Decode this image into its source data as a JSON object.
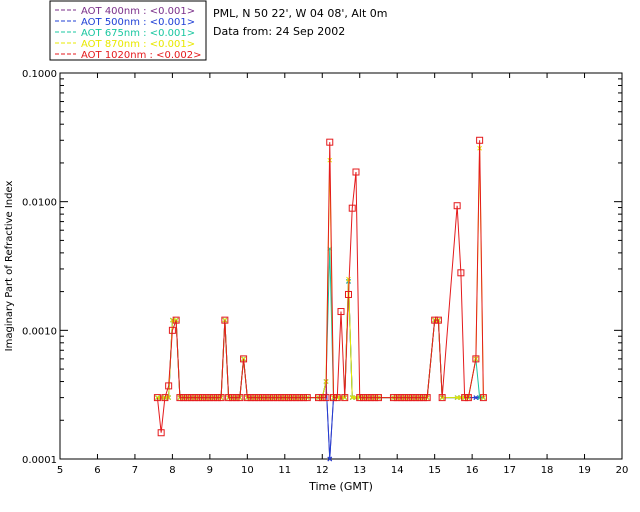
{
  "header": {
    "site": "PML, N 50 22', W 04 08', Alt 0m",
    "data_from": "Data from: 24 Sep 2002"
  },
  "chart_data": {
    "type": "line",
    "xlabel": "Time (GMT)",
    "ylabel": "Imaginary Part of Refractive Index",
    "xlim": [
      5,
      20
    ],
    "ylim": [
      0.0001,
      0.1
    ],
    "yscale": "log",
    "xticks": [
      "5",
      "6",
      "7",
      "8",
      "9",
      "10",
      "11",
      "12",
      "13",
      "14",
      "15",
      "16",
      "17",
      "18",
      "19",
      "20"
    ],
    "yticks": [
      "0.0001",
      "0.0010",
      "0.0100",
      "0.1000"
    ],
    "legend_position": "top-left",
    "series": [
      {
        "name": "AOT 400nm : <0.001>",
        "color": "#7a2f8a",
        "x": [
          7.6,
          7.7,
          7.8,
          7.9,
          8.0,
          8.1,
          8.2,
          8.3,
          8.4,
          8.5,
          8.6,
          8.7,
          8.8,
          8.9,
          9.0,
          9.1,
          9.2,
          9.3,
          9.4,
          9.5,
          9.6,
          9.7,
          9.8,
          9.9,
          10.0,
          10.1,
          10.2,
          10.3,
          10.4,
          10.5,
          10.6,
          10.7,
          10.8,
          10.9,
          11.0,
          11.1,
          11.2,
          11.3,
          11.4,
          11.5,
          11.6,
          11.9,
          12.0,
          12.1,
          12.2,
          12.3,
          12.4,
          12.5,
          12.6,
          12.7,
          12.8,
          12.9,
          13.0,
          13.1,
          13.2,
          13.3,
          13.4,
          13.5,
          13.9,
          14.0,
          14.1,
          14.2,
          14.3,
          14.4,
          14.5,
          14.6,
          14.7,
          14.8,
          15.0,
          15.1,
          15.2,
          15.6,
          15.7,
          15.8,
          15.9,
          16.1,
          16.2,
          16.3
        ],
        "y": [
          0.0003,
          0.0003,
          0.0003,
          0.0003,
          0.0012,
          0.0012,
          0.0003,
          0.0003,
          0.0003,
          0.0003,
          0.0003,
          0.0003,
          0.0003,
          0.0003,
          0.0003,
          0.0003,
          0.0003,
          0.0003,
          0.0012,
          0.0003,
          0.0003,
          0.0003,
          0.0003,
          0.0006,
          0.0003,
          0.0003,
          0.0003,
          0.0003,
          0.0003,
          0.0003,
          0.0003,
          0.0003,
          0.0003,
          0.0003,
          0.0003,
          0.0003,
          0.0003,
          0.0003,
          0.0003,
          0.0003,
          0.0003,
          0.0003,
          0.0003,
          0.0004,
          0.0001,
          0.0003,
          0.0003,
          0.0003,
          0.0003,
          0.0024,
          0.0003,
          0.0003,
          0.0003,
          0.0003,
          0.0003,
          0.0003,
          0.0003,
          0.0003,
          0.0003,
          0.0003,
          0.0003,
          0.0003,
          0.0003,
          0.0003,
          0.0003,
          0.0003,
          0.0003,
          0.0003,
          0.0012,
          0.0012,
          0.0003,
          0.0003,
          0.0003,
          0.0003,
          0.0003,
          0.0003,
          0.0003,
          0.0003
        ]
      },
      {
        "name": "AOT 500nm : <0.001>",
        "color": "#1f3fd6",
        "x": [
          7.6,
          7.7,
          7.8,
          7.9,
          8.0,
          8.1,
          8.2,
          8.3,
          8.4,
          8.5,
          8.6,
          8.7,
          8.8,
          8.9,
          9.0,
          9.1,
          9.2,
          9.3,
          9.4,
          9.5,
          9.6,
          9.7,
          9.8,
          9.9,
          10.0,
          10.1,
          10.2,
          10.3,
          10.4,
          10.5,
          10.6,
          10.7,
          10.8,
          10.9,
          11.0,
          11.1,
          11.2,
          11.3,
          11.4,
          11.5,
          11.6,
          11.9,
          12.0,
          12.1,
          12.2,
          12.3,
          12.4,
          12.5,
          12.6,
          12.7,
          12.8,
          12.9,
          13.0,
          13.1,
          13.2,
          13.3,
          13.4,
          13.5,
          13.9,
          14.0,
          14.1,
          14.2,
          14.3,
          14.4,
          14.5,
          14.6,
          14.7,
          14.8,
          15.0,
          15.1,
          15.2,
          15.6,
          15.7,
          15.8,
          15.9,
          16.1,
          16.2,
          16.3
        ],
        "y": [
          0.0003,
          0.0003,
          0.0003,
          0.0003,
          0.0012,
          0.0012,
          0.0003,
          0.0003,
          0.0003,
          0.0003,
          0.0003,
          0.0003,
          0.0003,
          0.0003,
          0.0003,
          0.0003,
          0.0003,
          0.0003,
          0.0012,
          0.0003,
          0.0003,
          0.0003,
          0.0003,
          0.0006,
          0.0003,
          0.0003,
          0.0003,
          0.0003,
          0.0003,
          0.0003,
          0.0003,
          0.0003,
          0.0003,
          0.0003,
          0.0003,
          0.0003,
          0.0003,
          0.0003,
          0.0003,
          0.0003,
          0.0003,
          0.0003,
          0.0003,
          0.0004,
          0.0001,
          0.0003,
          0.0003,
          0.0003,
          0.0003,
          0.0024,
          0.0003,
          0.0003,
          0.0003,
          0.0003,
          0.0003,
          0.0003,
          0.0003,
          0.0003,
          0.0003,
          0.0003,
          0.0003,
          0.0003,
          0.0003,
          0.0003,
          0.0003,
          0.0003,
          0.0003,
          0.0003,
          0.0012,
          0.0012,
          0.0003,
          0.0003,
          0.0003,
          0.0003,
          0.0003,
          0.0003,
          0.0003,
          0.0003
        ]
      },
      {
        "name": "AOT 675nm : <0.001>",
        "color": "#19c7a0",
        "x": [
          7.6,
          7.7,
          7.8,
          7.9,
          8.0,
          8.1,
          8.2,
          8.3,
          8.4,
          8.5,
          8.6,
          8.7,
          8.8,
          8.9,
          9.0,
          9.1,
          9.2,
          9.3,
          9.4,
          9.5,
          9.6,
          9.7,
          9.8,
          9.9,
          10.0,
          10.1,
          10.2,
          10.3,
          10.4,
          10.5,
          10.6,
          10.7,
          10.8,
          10.9,
          11.0,
          11.1,
          11.2,
          11.3,
          11.4,
          11.5,
          11.6,
          11.9,
          12.0,
          12.1,
          12.2,
          12.3,
          12.4,
          12.5,
          12.6,
          12.7,
          12.8,
          12.9,
          13.0,
          13.1,
          13.2,
          13.3,
          13.4,
          13.5,
          13.9,
          14.0,
          14.1,
          14.2,
          14.3,
          14.4,
          14.5,
          14.6,
          14.7,
          14.8,
          15.0,
          15.1,
          15.2,
          15.6,
          15.7,
          15.8,
          15.9,
          16.1,
          16.2,
          16.3
        ],
        "y": [
          0.0003,
          0.0003,
          0.0003,
          0.0003,
          0.0012,
          0.0012,
          0.0003,
          0.0003,
          0.0003,
          0.0003,
          0.0003,
          0.0003,
          0.0003,
          0.0003,
          0.0003,
          0.0003,
          0.0003,
          0.0003,
          0.0012,
          0.0003,
          0.0003,
          0.0003,
          0.0003,
          0.0006,
          0.0003,
          0.0003,
          0.0003,
          0.0003,
          0.0003,
          0.0003,
          0.0003,
          0.0003,
          0.0003,
          0.0003,
          0.0003,
          0.0003,
          0.0003,
          0.0003,
          0.0003,
          0.0003,
          0.0003,
          0.0003,
          0.0003,
          0.0004,
          0.0043,
          0.0003,
          0.0003,
          0.0003,
          0.0003,
          0.0024,
          0.0003,
          0.0003,
          0.0003,
          0.0003,
          0.0003,
          0.0003,
          0.0003,
          0.0003,
          0.0003,
          0.0003,
          0.0003,
          0.0003,
          0.0003,
          0.0003,
          0.0003,
          0.0003,
          0.0003,
          0.0003,
          0.0012,
          0.0012,
          0.0003,
          0.0003,
          0.0003,
          0.0003,
          0.0003,
          0.0006,
          0.0003,
          0.0003
        ]
      },
      {
        "name": "AOT 870nm : <0.001>",
        "color": "#e8e800",
        "x": [
          7.6,
          7.7,
          7.8,
          7.9,
          8.0,
          8.1,
          8.2,
          8.3,
          8.4,
          8.5,
          8.6,
          8.7,
          8.8,
          8.9,
          9.0,
          9.1,
          9.2,
          9.3,
          9.4,
          9.5,
          9.6,
          9.7,
          9.8,
          9.9,
          10.0,
          10.1,
          10.2,
          10.3,
          10.4,
          10.5,
          10.6,
          10.7,
          10.8,
          10.9,
          11.0,
          11.1,
          11.2,
          11.3,
          11.4,
          11.5,
          11.6,
          11.9,
          12.0,
          12.1,
          12.2,
          12.3,
          12.4,
          12.5,
          12.6,
          12.7,
          12.8,
          12.9,
          13.0,
          13.1,
          13.2,
          13.3,
          13.4,
          13.5,
          13.9,
          14.0,
          14.1,
          14.2,
          14.3,
          14.4,
          14.5,
          14.6,
          14.7,
          14.8,
          15.0,
          15.1,
          15.2,
          15.6,
          15.7,
          15.8,
          15.9,
          16.1,
          16.2,
          16.3
        ],
        "y": [
          0.0003,
          0.0003,
          0.0003,
          0.0003,
          0.0012,
          0.0012,
          0.0003,
          0.0003,
          0.0003,
          0.0003,
          0.0003,
          0.0003,
          0.0003,
          0.0003,
          0.0003,
          0.0003,
          0.0003,
          0.0003,
          0.0012,
          0.0003,
          0.0003,
          0.0003,
          0.0003,
          0.0006,
          0.0003,
          0.0003,
          0.0003,
          0.0003,
          0.0003,
          0.0003,
          0.0003,
          0.0003,
          0.0003,
          0.0003,
          0.0003,
          0.0003,
          0.0003,
          0.0003,
          0.0003,
          0.0003,
          0.0003,
          0.0003,
          0.0003,
          0.0004,
          0.021,
          0.0003,
          0.0003,
          0.0003,
          0.0003,
          0.0025,
          0.0003,
          0.0003,
          0.0003,
          0.0003,
          0.0003,
          0.0003,
          0.0003,
          0.0003,
          0.0003,
          0.0003,
          0.0003,
          0.0003,
          0.0003,
          0.0003,
          0.0003,
          0.0003,
          0.0003,
          0.0003,
          0.0012,
          0.0012,
          0.0003,
          0.0003,
          0.0003,
          0.0003,
          0.0003,
          0.0006,
          0.026,
          0.0003
        ]
      },
      {
        "name": "AOT 1020nm : <0.002>",
        "color": "#e41a1c",
        "x": [
          7.6,
          7.7,
          7.8,
          7.9,
          8.0,
          8.1,
          8.2,
          8.3,
          8.4,
          8.5,
          8.6,
          8.7,
          8.8,
          8.9,
          9.0,
          9.1,
          9.2,
          9.3,
          9.4,
          9.5,
          9.6,
          9.7,
          9.8,
          9.9,
          10.0,
          10.1,
          10.2,
          10.3,
          10.4,
          10.5,
          10.6,
          10.7,
          10.8,
          10.9,
          11.0,
          11.1,
          11.2,
          11.3,
          11.4,
          11.5,
          11.6,
          11.9,
          12.0,
          12.1,
          12.2,
          12.3,
          12.4,
          12.5,
          12.6,
          12.7,
          12.8,
          12.9,
          13.0,
          13.1,
          13.2,
          13.3,
          13.4,
          13.5,
          13.9,
          14.0,
          14.1,
          14.2,
          14.3,
          14.4,
          14.5,
          14.6,
          14.7,
          14.8,
          15.0,
          15.1,
          15.2,
          15.6,
          15.7,
          15.8,
          15.9,
          16.1,
          16.2,
          16.3
        ],
        "y": [
          0.0003,
          0.00016,
          0.0003,
          0.00037,
          0.001,
          0.0012,
          0.0003,
          0.0003,
          0.0003,
          0.0003,
          0.0003,
          0.0003,
          0.0003,
          0.0003,
          0.0003,
          0.0003,
          0.0003,
          0.0003,
          0.0012,
          0.0003,
          0.0003,
          0.0003,
          0.0003,
          0.0006,
          0.0003,
          0.0003,
          0.0003,
          0.0003,
          0.0003,
          0.0003,
          0.0003,
          0.0003,
          0.0003,
          0.0003,
          0.0003,
          0.0003,
          0.0003,
          0.0003,
          0.0003,
          0.0003,
          0.0003,
          0.0003,
          0.0003,
          0.0003,
          0.029,
          0.0003,
          0.0003,
          0.0014,
          0.0003,
          0.0019,
          0.0089,
          0.017,
          0.0003,
          0.0003,
          0.0003,
          0.0003,
          0.0003,
          0.0003,
          0.0003,
          0.0003,
          0.0003,
          0.0003,
          0.0003,
          0.0003,
          0.0003,
          0.0003,
          0.0003,
          0.0003,
          0.0012,
          0.0012,
          0.0003,
          0.0093,
          0.0028,
          0.0003,
          0.0003,
          0.0006,
          0.03,
          0.0003
        ]
      }
    ]
  }
}
